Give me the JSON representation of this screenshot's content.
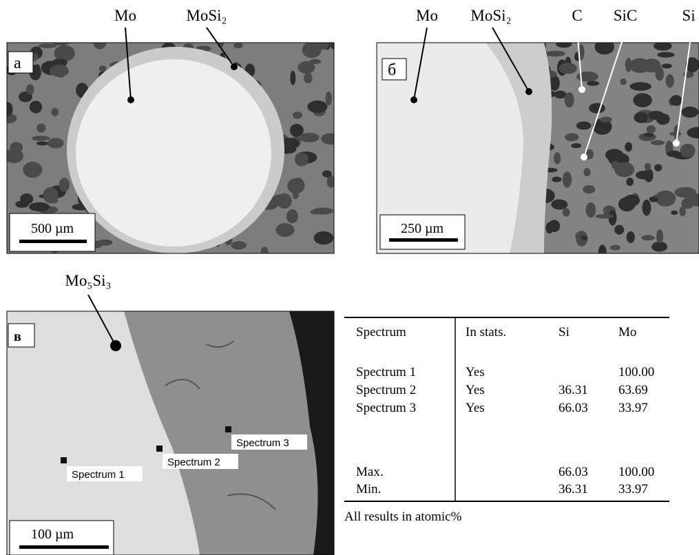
{
  "panels": [
    {
      "label": "а",
      "scale_bar": "500 µm",
      "phase_labels": [
        "Mo",
        "MoSi₂"
      ]
    },
    {
      "label": "б",
      "scale_bar": "250 µm",
      "phase_labels": [
        "Mo",
        "MoSi₂",
        "C",
        "SiC",
        "Si"
      ]
    },
    {
      "label": "в",
      "scale_bar": "100 µm",
      "phase_labels": [
        "Mo₅Si₃"
      ],
      "spectrum_labels": [
        "Spectrum 1",
        "Spectrum 2",
        "Spectrum 3"
      ]
    }
  ],
  "table": {
    "header": [
      "Spectrum",
      "In stats.",
      "Si",
      "Mo"
    ],
    "rows": [
      [
        "Spectrum 1",
        "Yes",
        null,
        "100.00"
      ],
      [
        "Spectrum 2",
        "Yes",
        "36.31",
        "63.69"
      ],
      [
        "Spectrum 3",
        "Yes",
        "66.03",
        "33.97"
      ]
    ],
    "summary": [
      [
        "Max.",
        null,
        "66.03",
        "100.00"
      ],
      [
        "Min.",
        null,
        "36.31",
        "33.97"
      ]
    ],
    "footnote": "All results in atomic%"
  }
}
